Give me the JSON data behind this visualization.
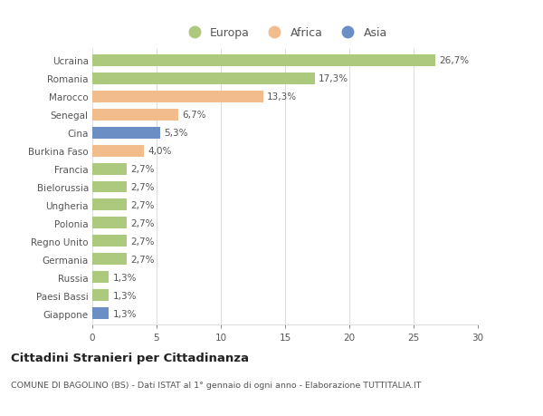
{
  "categories": [
    "Ucraina",
    "Romania",
    "Marocco",
    "Senegal",
    "Cina",
    "Burkina Faso",
    "Francia",
    "Bielorussia",
    "Ungheria",
    "Polonia",
    "Regno Unito",
    "Germania",
    "Russia",
    "Paesi Bassi",
    "Giappone"
  ],
  "values": [
    26.7,
    17.3,
    13.3,
    6.7,
    5.3,
    4.0,
    2.7,
    2.7,
    2.7,
    2.7,
    2.7,
    2.7,
    1.3,
    1.3,
    1.3
  ],
  "labels": [
    "26,7%",
    "17,3%",
    "13,3%",
    "6,7%",
    "5,3%",
    "4,0%",
    "2,7%",
    "2,7%",
    "2,7%",
    "2,7%",
    "2,7%",
    "2,7%",
    "1,3%",
    "1,3%",
    "1,3%"
  ],
  "continents": [
    "Europa",
    "Europa",
    "Africa",
    "Africa",
    "Asia",
    "Africa",
    "Europa",
    "Europa",
    "Europa",
    "Europa",
    "Europa",
    "Europa",
    "Europa",
    "Europa",
    "Asia"
  ],
  "colors": {
    "Europa": "#adc97e",
    "Africa": "#f2bc8c",
    "Asia": "#6b8ec4"
  },
  "legend_items": [
    "Europa",
    "Africa",
    "Asia"
  ],
  "xlim": [
    0,
    30
  ],
  "xticks": [
    0,
    5,
    10,
    15,
    20,
    25,
    30
  ],
  "title": "Cittadini Stranieri per Cittadinanza",
  "subtitle": "COMUNE DI BAGOLINO (BS) - Dati ISTAT al 1° gennaio di ogni anno - Elaborazione TUTTITALIA.IT",
  "bg_color": "#ffffff",
  "grid_color": "#dddddd",
  "bar_height": 0.65,
  "text_color": "#555555",
  "label_color": "#555555"
}
